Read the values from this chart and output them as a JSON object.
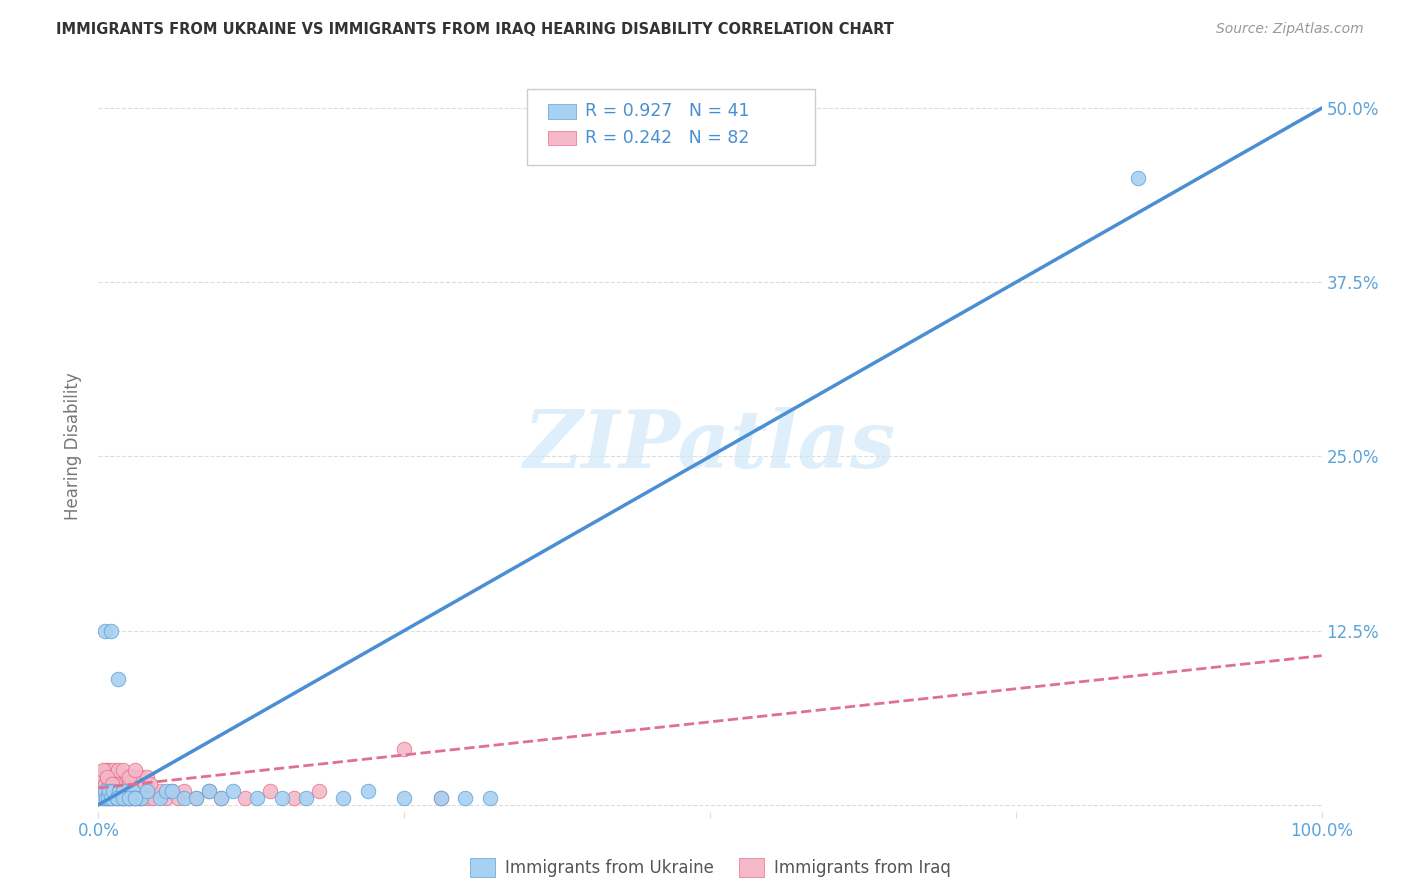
{
  "title": "IMMIGRANTS FROM UKRAINE VS IMMIGRANTS FROM IRAQ HEARING DISABILITY CORRELATION CHART",
  "source": "Source: ZipAtlas.com",
  "ylabel": "Hearing Disability",
  "xlim": [
    0,
    1.0
  ],
  "ylim": [
    -0.005,
    0.52
  ],
  "ytick_vals": [
    0.0,
    0.125,
    0.25,
    0.375,
    0.5
  ],
  "ytick_labels": [
    "",
    "12.5%",
    "25.0%",
    "37.5%",
    "50.0%"
  ],
  "xtick_vals": [
    0.0,
    0.25,
    0.5,
    0.75,
    1.0
  ],
  "xtick_labels": [
    "0.0%",
    "",
    "",
    "",
    "100.0%"
  ],
  "ukraine_color": "#a8d0f0",
  "ukraine_edge_color": "#5ba3d9",
  "iraq_color": "#f5b8c8",
  "iraq_edge_color": "#e8708a",
  "ukraine_line_color": "#4a8fd4",
  "iraq_line_color": "#e07090",
  "axis_color": "#5ba3d9",
  "grid_color": "#dddddd",
  "watermark_color": "#d0e8f8",
  "watermark": "ZIPatlas",
  "R_ukraine": 0.927,
  "N_ukraine": 41,
  "R_iraq": 0.242,
  "N_iraq": 82,
  "ukraine_line_slope": 0.5,
  "ukraine_line_intercept": 0.0,
  "iraq_line_slope": 0.095,
  "iraq_line_intercept": 0.012,
  "ukraine_x": [
    0.003,
    0.005,
    0.006,
    0.008,
    0.009,
    0.01,
    0.012,
    0.015,
    0.017,
    0.019,
    0.02,
    0.025,
    0.028,
    0.03,
    0.035,
    0.04,
    0.05,
    0.055,
    0.06,
    0.07,
    0.08,
    0.09,
    0.1,
    0.11,
    0.13,
    0.15,
    0.17,
    0.2,
    0.22,
    0.25,
    0.28,
    0.3,
    0.32,
    0.005,
    0.01,
    0.015,
    0.02,
    0.025,
    0.03,
    0.85,
    0.016
  ],
  "ukraine_y": [
    0.005,
    0.01,
    0.005,
    0.005,
    0.01,
    0.005,
    0.01,
    0.005,
    0.01,
    0.005,
    0.01,
    0.005,
    0.01,
    0.005,
    0.005,
    0.01,
    0.005,
    0.01,
    0.01,
    0.005,
    0.005,
    0.01,
    0.005,
    0.01,
    0.005,
    0.005,
    0.005,
    0.005,
    0.01,
    0.005,
    0.005,
    0.005,
    0.005,
    0.125,
    0.125,
    0.005,
    0.005,
    0.005,
    0.005,
    0.45,
    0.09
  ],
  "iraq_x": [
    0.003,
    0.004,
    0.005,
    0.006,
    0.007,
    0.008,
    0.009,
    0.01,
    0.011,
    0.012,
    0.013,
    0.014,
    0.015,
    0.016,
    0.017,
    0.018,
    0.019,
    0.02,
    0.021,
    0.022,
    0.023,
    0.024,
    0.025,
    0.026,
    0.027,
    0.028,
    0.029,
    0.03,
    0.031,
    0.032,
    0.033,
    0.034,
    0.035,
    0.036,
    0.038,
    0.04,
    0.042,
    0.045,
    0.05,
    0.055,
    0.06,
    0.065,
    0.07,
    0.08,
    0.09,
    0.1,
    0.12,
    0.14,
    0.16,
    0.18,
    0.003,
    0.005,
    0.007,
    0.009,
    0.011,
    0.013,
    0.015,
    0.017,
    0.019,
    0.021,
    0.023,
    0.025,
    0.027,
    0.029,
    0.031,
    0.033,
    0.035,
    0.038,
    0.04,
    0.042,
    0.006,
    0.008,
    0.012,
    0.016,
    0.02,
    0.025,
    0.03,
    0.25,
    0.28,
    0.004,
    0.007,
    0.011
  ],
  "iraq_y": [
    0.005,
    0.01,
    0.005,
    0.015,
    0.005,
    0.01,
    0.005,
    0.01,
    0.005,
    0.015,
    0.005,
    0.01,
    0.005,
    0.01,
    0.005,
    0.015,
    0.005,
    0.01,
    0.005,
    0.01,
    0.005,
    0.015,
    0.005,
    0.01,
    0.005,
    0.01,
    0.015,
    0.005,
    0.01,
    0.005,
    0.01,
    0.005,
    0.015,
    0.005,
    0.01,
    0.005,
    0.01,
    0.005,
    0.01,
    0.005,
    0.01,
    0.005,
    0.01,
    0.005,
    0.01,
    0.005,
    0.005,
    0.01,
    0.005,
    0.01,
    0.02,
    0.015,
    0.02,
    0.015,
    0.02,
    0.015,
    0.02,
    0.015,
    0.02,
    0.015,
    0.02,
    0.015,
    0.02,
    0.015,
    0.02,
    0.015,
    0.02,
    0.015,
    0.02,
    0.015,
    0.025,
    0.025,
    0.025,
    0.025,
    0.025,
    0.02,
    0.025,
    0.04,
    0.005,
    0.025,
    0.02,
    0.015
  ]
}
